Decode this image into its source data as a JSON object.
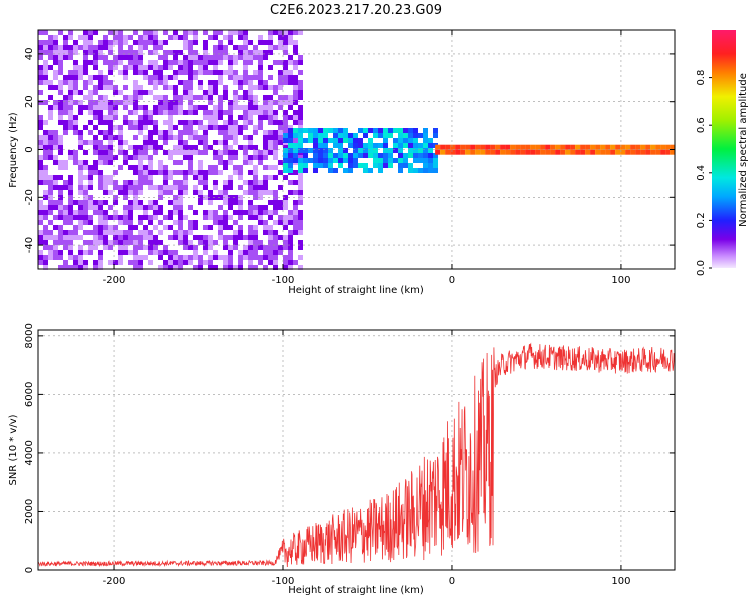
{
  "title": "C2E6.2023.217.20.23.G09",
  "chart_data": [
    {
      "type": "heatmap",
      "xlabel": "Height of straight line (km)",
      "ylabel": "Frequency (Hz)",
      "xlim": [
        -245,
        132
      ],
      "ylim": [
        -50,
        50
      ],
      "xticks": [
        -200,
        -100,
        0,
        100
      ],
      "yticks": [
        -40,
        -20,
        0,
        20,
        40
      ],
      "grid": true,
      "description_regions": [
        {
          "x": [
            -245,
            -90
          ],
          "freq": [
            -50,
            50
          ],
          "amplitude": 0.12
        },
        {
          "x": [
            -100,
            -10
          ],
          "freq": [
            -9,
            9
          ],
          "amplitude": 0.3
        },
        {
          "x": [
            -10,
            132
          ],
          "freq": [
            -2,
            2
          ],
          "amplitude": 0.9
        }
      ],
      "colorbar": {
        "label": "Normalized spectral amplitude",
        "range": [
          0,
          1
        ],
        "ticks": [
          0.0,
          0.2,
          0.4,
          0.6,
          0.8
        ],
        "tick_labels": [
          "0.0",
          "0.2",
          "0.4",
          "0.6",
          "0.8"
        ]
      }
    },
    {
      "type": "line",
      "xlabel": "Height of straight line (km)",
      "ylabel": "SNR (10 * v/v)",
      "xlim": [
        -245,
        132
      ],
      "ylim": [
        0,
        8200
      ],
      "xticks": [
        -200,
        -100,
        0,
        100
      ],
      "yticks": [
        0,
        2000,
        4000,
        6000,
        8000
      ],
      "grid": true,
      "color": "#ee3333",
      "envelope": [
        {
          "x": -245,
          "y": 250
        },
        {
          "x": -105,
          "y": 280
        },
        {
          "x": -100,
          "y": 900
        },
        {
          "x": -80,
          "y": 1400
        },
        {
          "x": -60,
          "y": 1800
        },
        {
          "x": -40,
          "y": 2200
        },
        {
          "x": -25,
          "y": 2800
        },
        {
          "x": -10,
          "y": 3800
        },
        {
          "x": 0,
          "y": 4700
        },
        {
          "x": 10,
          "y": 5200
        },
        {
          "x": 20,
          "y": 6200
        },
        {
          "x": 30,
          "y": 7100
        },
        {
          "x": 45,
          "y": 7400
        },
        {
          "x": 70,
          "y": 7300
        },
        {
          "x": 100,
          "y": 7200
        },
        {
          "x": 132,
          "y": 7300
        }
      ]
    }
  ],
  "colors": {
    "signal": "#ee3333",
    "axes": "#000000",
    "grid": "#888888"
  }
}
